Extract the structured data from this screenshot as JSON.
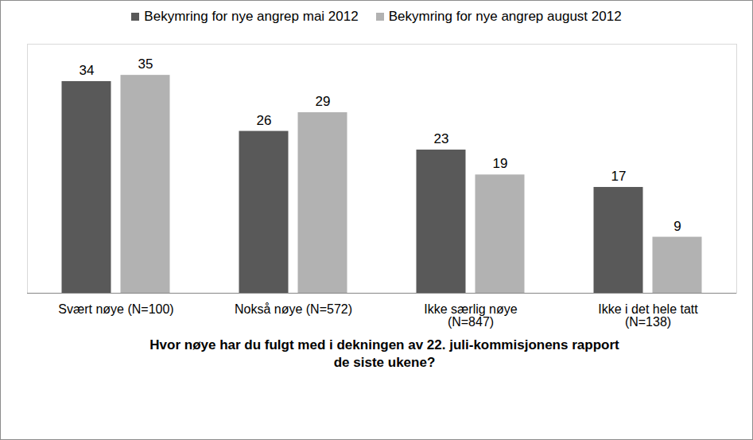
{
  "chart_data": {
    "type": "bar",
    "x_label": "Hvor nøye har du fulgt med i dekningen av 22. juli-kommisjonens rapport\nde siste ukene?",
    "categories": [
      "Svært nøye (N=100)",
      "Nokså nøye (N=572)",
      "Ikke særlig nøye\n(N=847)",
      "Ikke i det hele tatt\n(N=138)"
    ],
    "series": [
      {
        "name": "Bekymring for nye angrep mai 2012",
        "color": "#595959",
        "values": [
          34,
          26,
          23,
          17
        ]
      },
      {
        "name": "Bekymring for nye angrep august 2012",
        "color": "#b2b2b2",
        "values": [
          35,
          29,
          19,
          9
        ]
      }
    ],
    "ylim": [
      0,
      40
    ],
    "grid": false,
    "legend": "top",
    "data_labels": true,
    "tick_labels": "x"
  }
}
